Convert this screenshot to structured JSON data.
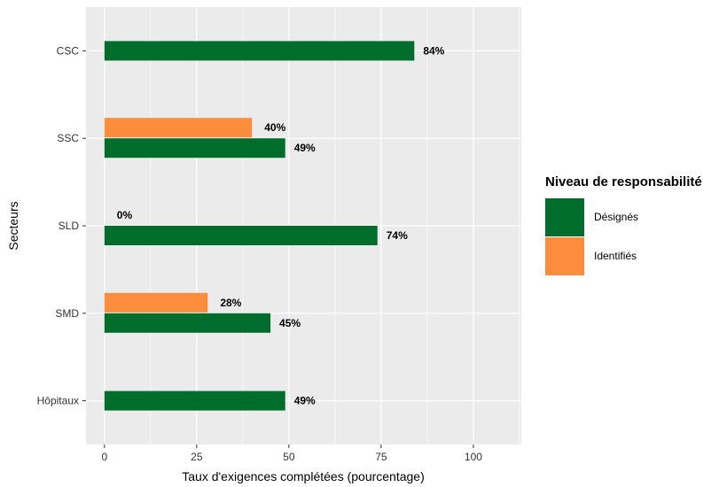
{
  "chart_data": {
    "type": "bar",
    "orientation": "horizontal",
    "xlabel": "Taux d'exigences complétées (pourcentage)",
    "ylabel": "Secteurs",
    "xlim": [
      -5,
      113
    ],
    "x_ticks": [
      0,
      25,
      50,
      75,
      100
    ],
    "x_tick_labels": [
      "0",
      "25",
      "50",
      "75",
      "100"
    ],
    "grid": true,
    "categories": [
      "CSC",
      "SSC",
      "SLD",
      "SMD",
      "Hôpitaux"
    ],
    "series": [
      {
        "name": "Désignés",
        "color": "#006d2c",
        "values": [
          84,
          49,
          74,
          45,
          49
        ],
        "labels": [
          "84%",
          "49%",
          "74%",
          "45%",
          "49%"
        ]
      },
      {
        "name": "Identifiés",
        "color": "#fd8d3c",
        "values": [
          null,
          40,
          0,
          28,
          null
        ],
        "labels": [
          null,
          "40%",
          "0%",
          "28%",
          null
        ]
      }
    ],
    "legend": {
      "title": "Niveau de responsabilité",
      "position": "right"
    }
  }
}
